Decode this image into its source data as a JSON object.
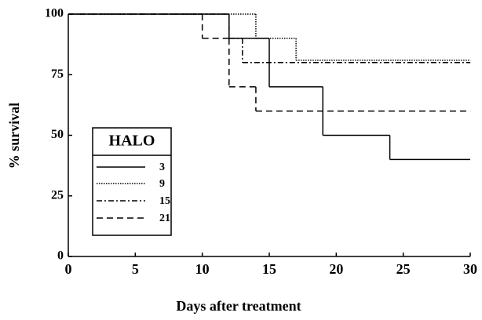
{
  "chart_data": {
    "type": "step",
    "x_label": "Days after treatment",
    "y_label": "% survival",
    "xlim": [
      0,
      30
    ],
    "ylim": [
      0,
      100
    ],
    "xticks": [
      0,
      5,
      10,
      15,
      20,
      25,
      30
    ],
    "yticks": [
      0,
      25,
      50,
      75,
      100
    ],
    "legend_title": "HALO",
    "legend_position": "lower left",
    "series": [
      {
        "name": "3",
        "color": "#000000",
        "dash": "solid",
        "x": [
          0,
          12,
          15,
          19,
          24,
          30
        ],
        "values": [
          100,
          90,
          70,
          50,
          40,
          40
        ]
      },
      {
        "name": "9",
        "color": "#000000",
        "dash": "dotted",
        "x": [
          0,
          14,
          17,
          30
        ],
        "values": [
          100,
          90,
          81,
          81
        ]
      },
      {
        "name": "15",
        "color": "#000000",
        "dash": "dashdot",
        "x": [
          0,
          12,
          13,
          30
        ],
        "values": [
          100,
          90,
          80,
          80
        ]
      },
      {
        "name": "21",
        "color": "#000000",
        "dash": "dashed",
        "x": [
          0,
          10,
          12,
          14,
          30
        ],
        "values": [
          100,
          90,
          70,
          60,
          60
        ]
      }
    ]
  }
}
